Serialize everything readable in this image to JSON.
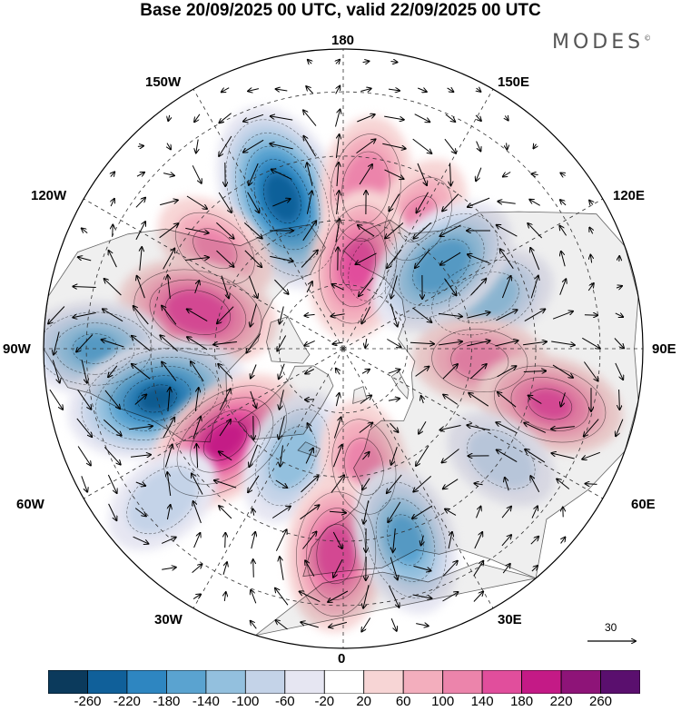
{
  "title": "Base 20/09/2025 00 UTC, valid 22/09/2025 00 UTC",
  "logo": "MODES",
  "logo_mark": "©",
  "longitude_labels": {
    "lon_180": "180",
    "lon_150w": "150W",
    "lon_150e": "150E",
    "lon_120w": "120W",
    "lon_120e": "120E",
    "lon_90w": "90W",
    "lon_90e": "90E",
    "lon_60w": "60W",
    "lon_60e": "60E",
    "lon_30w": "30W",
    "lon_30e": "30E",
    "lon_0": "0"
  },
  "reference_vector": "30",
  "colorbar": {
    "ticks": [
      "-260",
      "-220",
      "-180",
      "-140",
      "-100",
      "-60",
      "-20",
      "20",
      "60",
      "100",
      "140",
      "180",
      "220",
      "260"
    ],
    "colors": [
      "#0b3a5c",
      "#10609a",
      "#2e86c1",
      "#5aa3d0",
      "#93c0de",
      "#c4d3e8",
      "#e6e6f2",
      "#ffffff",
      "#f7d5d5",
      "#f3aebd",
      "#ec84ab",
      "#e14e9c",
      "#c41a86",
      "#8e1478",
      "#5a0f6e"
    ]
  },
  "map_colors": {
    "land": "#efefef",
    "coast": "#666666",
    "grid": "#333333",
    "arrow": "#000000",
    "contour": "#000000"
  },
  "anomalies": [
    {
      "name": "trough-150w",
      "lon": -158,
      "lat": 52,
      "value": -250
    },
    {
      "name": "ridge-130w",
      "lon": -128,
      "lat": 52,
      "value": 110
    },
    {
      "name": "ridge-170e",
      "lon": 172,
      "lat": 52,
      "value": 140
    },
    {
      "name": "ridge-150e",
      "lon": 150,
      "lat": 55,
      "value": 110
    },
    {
      "name": "low-160e",
      "lon": 160,
      "lat": 70,
      "value": -80
    },
    {
      "name": "ridge-170e-high-lat",
      "lon": 170,
      "lat": 70,
      "value": 160
    },
    {
      "name": "trough-110e",
      "lon": 110,
      "lat": 55,
      "value": -140
    },
    {
      "name": "trough-135e",
      "lon": 130,
      "lat": 60,
      "value": -180
    },
    {
      "name": "ridge-105w",
      "lon": -104,
      "lat": 55,
      "value": 180
    },
    {
      "name": "trough-92w",
      "lon": -90,
      "lat": 32,
      "value": -150
    },
    {
      "name": "trough-75w",
      "lon": -75,
      "lat": 45,
      "value": -230
    },
    {
      "name": "ridge-85e",
      "lon": 85,
      "lat": 58,
      "value": 120
    },
    {
      "name": "ridge-75e",
      "lon": 75,
      "lat": 40,
      "value": 150
    },
    {
      "name": "trough-55e",
      "lon": 55,
      "lat": 45,
      "value": -90
    },
    {
      "name": "ridge-50w",
      "lon": -52,
      "lat": 55,
      "value": 200
    },
    {
      "name": "trough-35w",
      "lon": -25,
      "lat": 62,
      "value": -130
    },
    {
      "name": "ridge-10e",
      "lon": 10,
      "lat": 62,
      "value": 120
    },
    {
      "name": "trough-55w",
      "lon": -50,
      "lat": 35,
      "value": -100
    },
    {
      "name": "ridge-5w",
      "lon": -2,
      "lat": 42,
      "value": 170
    },
    {
      "name": "trough-20e",
      "lon": 18,
      "lat": 43,
      "value": -160
    }
  ]
}
